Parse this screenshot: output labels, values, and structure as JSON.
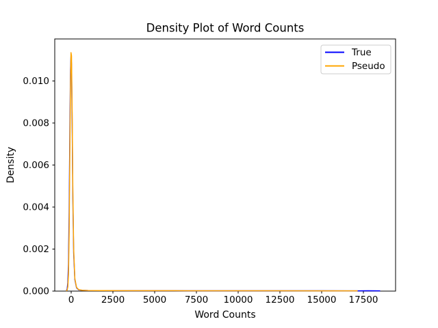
{
  "figure": {
    "background": "#ffffff",
    "frame_color": "#000000"
  },
  "chart_data": {
    "type": "line",
    "title": "Density Plot of Word Counts",
    "xlabel": "Word Counts",
    "ylabel": "Density",
    "xlim": [
      -983,
      19425
    ],
    "ylim": [
      0,
      0.012
    ],
    "grid": false,
    "x_ticks": {
      "values": [
        0,
        2500,
        5000,
        7500,
        10000,
        12500,
        15000,
        17500
      ],
      "labels": [
        "0",
        "2500",
        "5000",
        "7500",
        "10000",
        "12500",
        "15000",
        "17500"
      ]
    },
    "y_ticks": {
      "values": [
        0,
        0.002,
        0.004,
        0.006,
        0.008,
        0.01
      ],
      "labels": [
        "0.000",
        "0.002",
        "0.004",
        "0.006",
        "0.008",
        "0.010"
      ]
    },
    "legend": {
      "position": "upper right",
      "border_color": "#cccccc",
      "background": "#ffffff",
      "entries": [
        {
          "label": "True",
          "color": "#0000ff"
        },
        {
          "label": "Pseudo",
          "color": "#ffa500"
        }
      ]
    },
    "series": [
      {
        "name": "True",
        "color": "#0000ff",
        "linewidth": 1.5,
        "x": [
          -280,
          -240,
          -200,
          -160,
          -120,
          -80,
          -40,
          -10,
          20,
          60,
          100,
          150,
          220,
          320,
          450,
          650,
          1000,
          1800,
          3500,
          7000,
          12000,
          15000,
          16500,
          17130,
          17800,
          18480
        ],
        "y": [
          3e-05,
          0.0001,
          0.0004,
          0.0013,
          0.0038,
          0.0075,
          0.0105,
          0.0112,
          0.0108,
          0.008,
          0.0044,
          0.0018,
          0.00055,
          0.00016,
          6e-05,
          4e-05,
          3e-05,
          2.5e-05,
          2e-05,
          1.8e-05,
          1.6e-05,
          1.5e-05,
          1.4e-05,
          1.4e-05,
          1.5e-05,
          1.3e-05
        ]
      },
      {
        "name": "Pseudo",
        "color": "#ffa500",
        "linewidth": 1.5,
        "x": [
          -280,
          -240,
          -200,
          -160,
          -120,
          -80,
          -40,
          -10,
          20,
          60,
          100,
          150,
          220,
          320,
          450,
          650,
          1000,
          1800,
          3500,
          7000,
          12000,
          15000,
          16500,
          17130
        ],
        "y": [
          2e-05,
          5e-05,
          0.0002,
          0.0008,
          0.0028,
          0.0065,
          0.01,
          0.01135,
          0.0112,
          0.0085,
          0.0048,
          0.002,
          0.0006,
          0.00018,
          7e-05,
          4e-05,
          3e-05,
          2.5e-05,
          2e-05,
          1.8e-05,
          1.5e-05,
          1.4e-05,
          1.3e-05,
          1.2e-05
        ]
      }
    ]
  }
}
